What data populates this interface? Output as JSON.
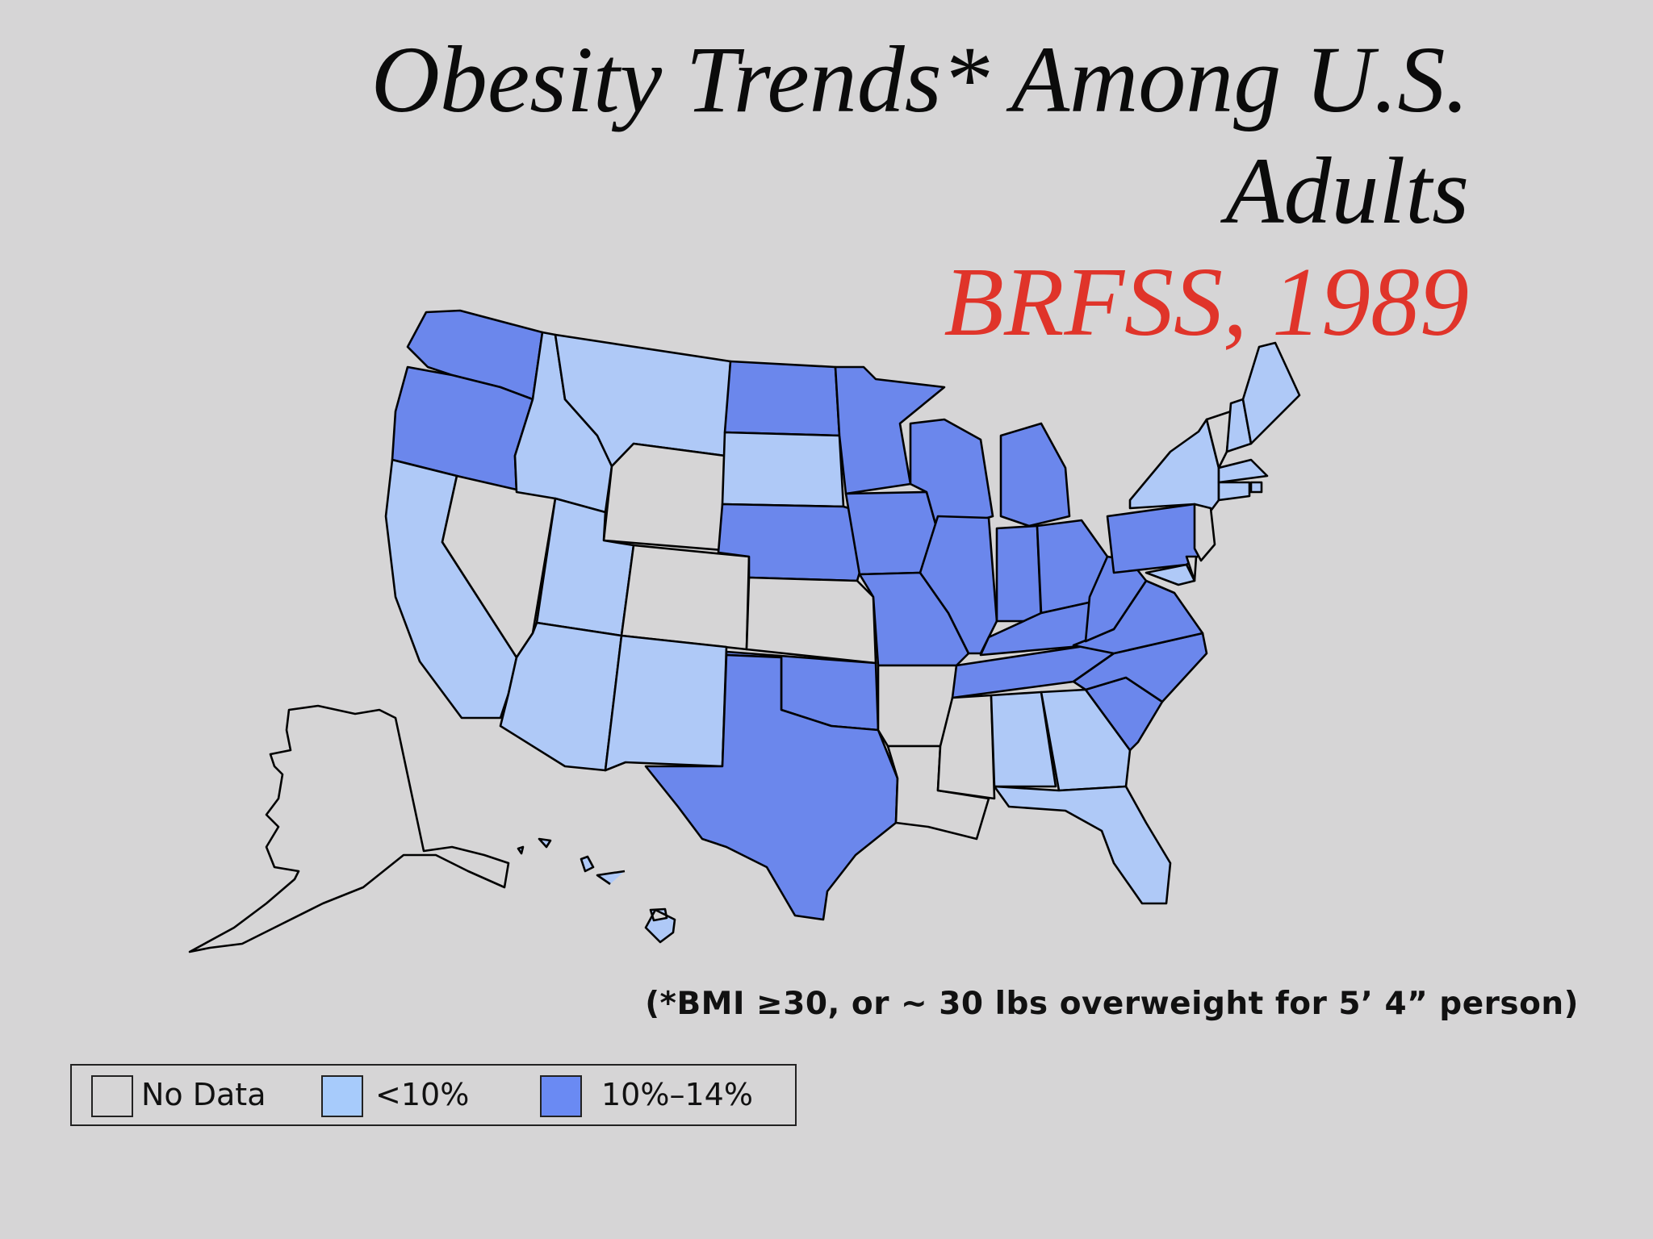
{
  "title": {
    "line1": "Obesity Trends* Among U.S.",
    "line2": "Adults",
    "line3": "BRFSS, 1989"
  },
  "footnote": "(*BMI ≥30, or ~ 30 lbs overweight for 5’ 4” person)",
  "legend": [
    {
      "key": "no_data",
      "label": "No Data",
      "color": "#d6d5d6"
    },
    {
      "key": "lt10",
      "label": "<10%",
      "color": "#a7cbfb"
    },
    {
      "key": "10to14",
      "label": "10%–14%",
      "color": "#6a8af3"
    }
  ],
  "colors": {
    "no_data": "#d6d5d6",
    "lt10": "#afc9f7",
    "10to14": "#6b87ec",
    "title_accent": "#e0342a",
    "background": "#d6d5d6"
  },
  "states": {
    "WA": "10to14",
    "OR": "10to14",
    "CA": "lt10",
    "NV": "no_data",
    "ID": "lt10",
    "MT": "lt10",
    "WY": "no_data",
    "UT": "lt10",
    "AZ": "lt10",
    "CO": "no_data",
    "NM": "lt10",
    "ND": "10to14",
    "SD": "lt10",
    "NE": "10to14",
    "KS": "no_data",
    "OK": "10to14",
    "TX": "10to14",
    "MN": "10to14",
    "IA": "10to14",
    "MO": "10to14",
    "AR": "no_data",
    "LA": "no_data",
    "WI": "10to14",
    "IL": "10to14",
    "MI": "10to14",
    "IN": "10to14",
    "OH": "10to14",
    "KY": "10to14",
    "TN": "10to14",
    "MS": "no_data",
    "AL": "lt10",
    "GA": "lt10",
    "FL": "lt10",
    "SC": "10to14",
    "NC": "10to14",
    "VA": "10to14",
    "WV": "10to14",
    "PA": "10to14",
    "NY": "lt10",
    "VT": "no_data",
    "NH": "lt10",
    "ME": "lt10",
    "MA": "lt10",
    "RI": "lt10",
    "CT": "lt10",
    "NJ": "no_data",
    "DE": "no_data",
    "MD": "lt10",
    "AK": "no_data",
    "HI": "lt10"
  }
}
